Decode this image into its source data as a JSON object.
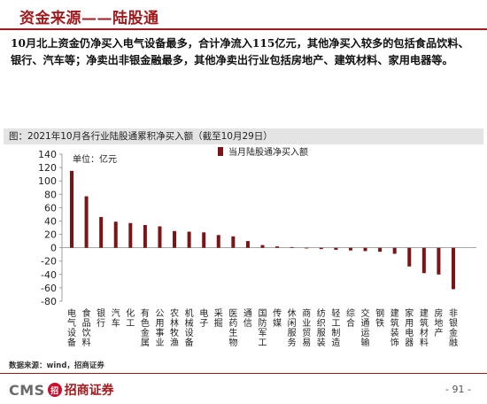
{
  "header": {
    "title": "资金来源——陆股通",
    "summary": "10月北上资金仍净买入电气设备最多，合计净流入115亿元，其他净买入较多的包括食品饮料、银行、汽车等；净卖出非银金融最多，其他净卖出行业包括房地产、建筑材料、家用电器等。"
  },
  "chart": {
    "caption": "图：2021年10月各行业陆股通累积净买入额（截至10月29日）",
    "unit": "单位：亿元",
    "legend": "当月陆股通净买入额",
    "bar_color": "#7b1416"
  },
  "chart_data": {
    "type": "bar",
    "title": "图：2021年10月各行业陆股通累积净买入额（截至10月29日）",
    "ylabel": "单位：亿元",
    "ylim": [
      -80,
      140
    ],
    "yticks": [
      140,
      120,
      100,
      80,
      60,
      40,
      20,
      0,
      -20,
      -40,
      -60,
      -80
    ],
    "legend_position": "top-right",
    "categories": [
      "电气设备",
      "食品饮料",
      "银行",
      "汽车",
      "化工",
      "有色金属",
      "公用事业",
      "农林牧渔",
      "机械设备",
      "电子",
      "采掘",
      "医药生物",
      "通信",
      "国防军工",
      "传媒",
      "休闲服务",
      "商业贸易",
      "纺织服装",
      "轻工制造",
      "综合",
      "交通运输",
      "钢铁",
      "建筑装饰",
      "家用电器",
      "建筑材料",
      "房地产",
      "非银金融"
    ],
    "series": [
      {
        "name": "当月陆股通净买入额",
        "values": [
          115,
          77,
          46,
          39,
          37,
          34,
          32,
          25,
          24,
          23,
          19,
          17,
          10,
          4,
          2,
          1,
          -1,
          -2,
          -3,
          -4,
          -5,
          -6,
          -9,
          -28,
          -38,
          -40,
          -62
        ]
      }
    ]
  },
  "footer": {
    "source": "数据来源：wind，招商证券",
    "logo_en": "CMS",
    "logo_badge": "招",
    "logo_cn": "招商证券",
    "page": "- 91 -"
  }
}
